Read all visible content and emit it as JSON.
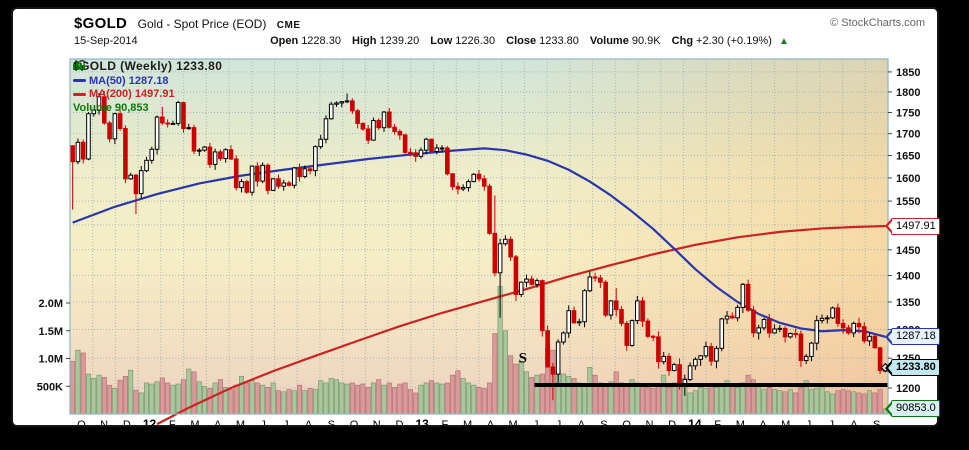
{
  "header": {
    "symbol": "$GOLD",
    "title": "Gold - Spot Price (EOD)",
    "exchange": "CME",
    "copyright": "© StockCharts.com",
    "date": "15-Sep-2014",
    "quote": [
      {
        "label": "Open",
        "value": "1228.30"
      },
      {
        "label": "High",
        "value": "1239.20"
      },
      {
        "label": "Low",
        "value": "1226.30"
      },
      {
        "label": "Close",
        "value": "1233.80"
      },
      {
        "label": "Volume",
        "value": "90.9K"
      },
      {
        "label": "Chg",
        "value": "+2.30 (+0.19%)"
      }
    ],
    "change_direction": "up"
  },
  "legend": {
    "main": "$GOLD (Weekly) 1233.80",
    "ma50_label": "MA(50) 1287.18",
    "ma200_label": "MA(200) 1497.91",
    "volume_label": "Volume 90,853"
  },
  "colors": {
    "ma50": "#2936ad",
    "ma200": "#cc2222",
    "candle_down": "#cc0000",
    "candle_up_fill": "#ffffff",
    "candle_up_stroke": "#000000",
    "vol_up_fill": "#a9c79d",
    "vol_up_stroke": "#6f8f66",
    "vol_down_fill": "#d89a9a",
    "vol_down_stroke": "#b26a6a",
    "legend_volume_text": "#0a7a0a",
    "grid": "#93aaae",
    "arrow_up": "#1a7a1a",
    "support": "#000000"
  },
  "chart_data": {
    "type": "candlestick",
    "symbol": "$GOLD",
    "timeframe": "Weekly",
    "last_close": 1233.8,
    "y_axis": {
      "scale": "log",
      "ticks": [
        1850,
        1800,
        1750,
        1700,
        1650,
        1600,
        1550,
        1500,
        1450,
        1400,
        1350,
        1300,
        1250,
        1200
      ],
      "top_price": 1883,
      "bottom_price": 1158
    },
    "volume_axis": {
      "ticks": [
        {
          "t": "2.0M",
          "v": 2000
        },
        {
          "t": "1.5M",
          "v": 1500
        },
        {
          "t": "1.0M",
          "v": 1000
        },
        {
          "t": "500K",
          "v": 500
        }
      ]
    },
    "x_axis": {
      "labels": [
        {
          "t": "O"
        },
        {
          "t": "N"
        },
        {
          "t": "D"
        },
        {
          "t": "12",
          "bold": true
        },
        {
          "t": "F"
        },
        {
          "t": "M"
        },
        {
          "t": "A"
        },
        {
          "t": "M"
        },
        {
          "t": "J"
        },
        {
          "t": "J"
        },
        {
          "t": "A"
        },
        {
          "t": "S"
        },
        {
          "t": "O"
        },
        {
          "t": "N"
        },
        {
          "t": "D"
        },
        {
          "t": "13",
          "bold": true
        },
        {
          "t": "F"
        },
        {
          "t": "M"
        },
        {
          "t": "A"
        },
        {
          "t": "M"
        },
        {
          "t": "J"
        },
        {
          "t": "J"
        },
        {
          "t": "A"
        },
        {
          "t": "S"
        },
        {
          "t": "O"
        },
        {
          "t": "N"
        },
        {
          "t": "D"
        },
        {
          "t": "14",
          "bold": true
        },
        {
          "t": "F"
        },
        {
          "t": "M"
        },
        {
          "t": "A"
        },
        {
          "t": "M"
        },
        {
          "t": "J"
        },
        {
          "t": "J"
        },
        {
          "t": "A"
        },
        {
          "t": "S"
        }
      ]
    },
    "first_open": 1672,
    "weekly_closes": [
      1636,
      1680,
      1642,
      1747,
      1756,
      1788,
      1725,
      1688,
      1747,
      1712,
      1598,
      1606,
      1566,
      1616,
      1639,
      1664,
      1739,
      1725,
      1723,
      1724,
      1774,
      1712,
      1714,
      1660,
      1662,
      1669,
      1630,
      1658,
      1643,
      1663,
      1642,
      1579,
      1592,
      1569,
      1626,
      1593,
      1628,
      1573,
      1598,
      1582,
      1589,
      1584,
      1622,
      1603,
      1620,
      1616,
      1670,
      1687,
      1735,
      1770,
      1773,
      1776,
      1778,
      1754,
      1724,
      1711,
      1685,
      1731,
      1714,
      1751,
      1715,
      1705,
      1697,
      1657,
      1656,
      1648,
      1662,
      1687,
      1659,
      1667,
      1667,
      1609,
      1581,
      1576,
      1579,
      1592,
      1608,
      1598,
      1582,
      1483,
      1405,
      1462,
      1471,
      1436,
      1364,
      1387,
      1393,
      1383,
      1390,
      1298,
      1235,
      1223,
      1278,
      1294,
      1334,
      1312,
      1314,
      1371,
      1397,
      1395,
      1387,
      1326,
      1352,
      1336,
      1311,
      1272,
      1316,
      1352,
      1315,
      1288,
      1287,
      1244,
      1253,
      1229,
      1239,
      1203,
      1214,
      1237,
      1248,
      1254,
      1270,
      1245,
      1267,
      1319,
      1324,
      1321,
      1340,
      1383,
      1335,
      1294,
      1303,
      1318,
      1294,
      1301,
      1302,
      1287,
      1293,
      1292,
      1246,
      1253,
      1276,
      1316,
      1320,
      1321,
      1339,
      1311,
      1303,
      1294,
      1311,
      1305,
      1280,
      1288,
      1268,
      1229,
      1233.8
    ],
    "low_overrides": {
      "0": 1532,
      "12": 1523,
      "81": 1321,
      "90": 1272,
      "91": 1180,
      "92": 1208,
      "116": 1187,
      "139": 1240,
      "154": 1226.3
    },
    "high_overrides": {
      "6": 1802,
      "17": 1763,
      "52": 1796,
      "80": 1562,
      "103": 1376,
      "128": 1392,
      "145": 1347,
      "154": 1239.2
    },
    "open_overrides": {
      "154": 1228.3
    },
    "volumes_k": [
      950,
      1150,
      1100,
      720,
      640,
      700,
      660,
      520,
      460,
      610,
      680,
      790,
      430,
      380,
      560,
      540,
      580,
      650,
      560,
      520,
      540,
      620,
      810,
      760,
      580,
      500,
      460,
      560,
      620,
      480,
      440,
      520,
      680,
      560,
      600,
      560,
      520,
      480,
      560,
      420,
      400,
      440,
      420,
      520,
      420,
      460,
      440,
      600,
      560,
      640,
      620,
      560,
      540,
      560,
      520,
      540,
      480,
      560,
      620,
      520,
      560,
      480,
      540,
      560,
      440,
      380,
      520,
      560,
      600,
      560,
      540,
      560,
      700,
      780,
      640,
      560,
      520,
      480,
      460,
      560,
      1450,
      2300,
      1500,
      1050,
      900,
      950,
      760,
      660,
      700,
      720,
      1200,
      1150,
      780,
      720,
      680,
      640,
      560,
      520,
      840,
      700,
      560,
      520,
      580,
      760,
      560,
      520,
      620,
      560,
      520,
      480,
      460,
      520,
      700,
      480,
      560,
      520,
      640,
      380,
      420,
      480,
      460,
      520,
      480,
      520,
      600,
      520,
      480,
      560,
      700,
      620,
      520,
      440,
      480,
      440,
      420,
      400,
      440,
      380,
      480,
      600,
      440,
      460,
      520,
      400,
      360,
      420,
      440,
      420,
      400,
      380,
      360,
      420,
      380,
      440,
      91
    ],
    "ma50_points": [
      [
        0,
        1505
      ],
      [
        8,
        1538
      ],
      [
        16,
        1565
      ],
      [
        24,
        1588
      ],
      [
        32,
        1605
      ],
      [
        40,
        1618
      ],
      [
        48,
        1630
      ],
      [
        56,
        1642
      ],
      [
        64,
        1652
      ],
      [
        72,
        1661
      ],
      [
        78,
        1666
      ],
      [
        82,
        1662
      ],
      [
        86,
        1652
      ],
      [
        90,
        1638
      ],
      [
        94,
        1618
      ],
      [
        98,
        1592
      ],
      [
        102,
        1562
      ],
      [
        106,
        1528
      ],
      [
        110,
        1492
      ],
      [
        114,
        1452
      ],
      [
        118,
        1412
      ],
      [
        122,
        1378
      ],
      [
        126,
        1350
      ],
      [
        130,
        1328
      ],
      [
        134,
        1312
      ],
      [
        138,
        1302
      ],
      [
        142,
        1297
      ],
      [
        146,
        1299
      ],
      [
        150,
        1297
      ],
      [
        154,
        1287.2
      ]
    ],
    "ma200_points": [
      [
        16,
        1142
      ],
      [
        22,
        1168
      ],
      [
        30,
        1200
      ],
      [
        38,
        1228
      ],
      [
        46,
        1254
      ],
      [
        54,
        1280
      ],
      [
        62,
        1306
      ],
      [
        70,
        1330
      ],
      [
        78,
        1352
      ],
      [
        86,
        1374
      ],
      [
        94,
        1398
      ],
      [
        102,
        1420
      ],
      [
        110,
        1441
      ],
      [
        118,
        1460
      ],
      [
        126,
        1475
      ],
      [
        134,
        1486
      ],
      [
        142,
        1493
      ],
      [
        148,
        1496
      ],
      [
        154,
        1497.9
      ]
    ],
    "support_line": {
      "price": 1205,
      "from_week": 87.5,
      "label": "S",
      "label_week": 84.5,
      "label_price": 1243
    },
    "last_marker": {
      "week": 154,
      "price": 1233.8
    },
    "callouts": [
      {
        "text": "1497.91",
        "price": 1497.91,
        "border": "#cc2222",
        "bg": "#ffffff",
        "bold": false
      },
      {
        "text": "1287.18",
        "price": 1287.18,
        "border": "#2936ad",
        "bg": "#e6f3fa",
        "bold": false
      },
      {
        "text": "1233.80",
        "price": 1233.8,
        "border": "#000000",
        "bg": "#c2e9f2",
        "bold": true
      },
      {
        "text": "90853.0",
        "volume_k": 90.853,
        "border": "#0a7a0a",
        "bg": "#d9f0ef",
        "bold": false
      }
    ]
  }
}
